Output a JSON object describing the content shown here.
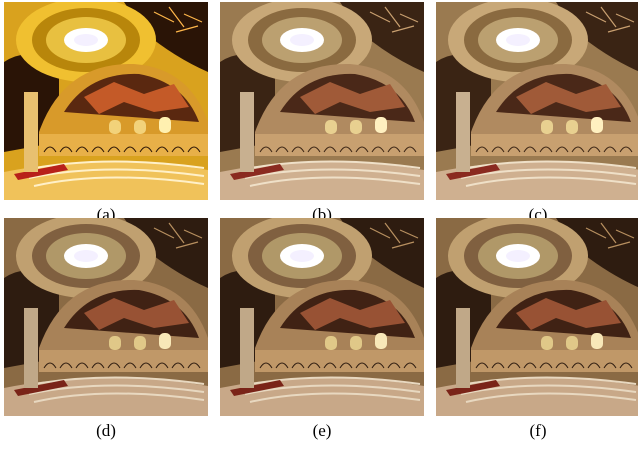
{
  "figure": {
    "panels": [
      {
        "label": "(a)",
        "tone": "saturated"
      },
      {
        "label": "(b)",
        "tone": "natural"
      },
      {
        "label": "(c)",
        "tone": "natural"
      },
      {
        "label": "(d)",
        "tone": "natural"
      },
      {
        "label": "(e)",
        "tone": "natural"
      },
      {
        "label": "(f)",
        "tone": "natural"
      }
    ]
  }
}
